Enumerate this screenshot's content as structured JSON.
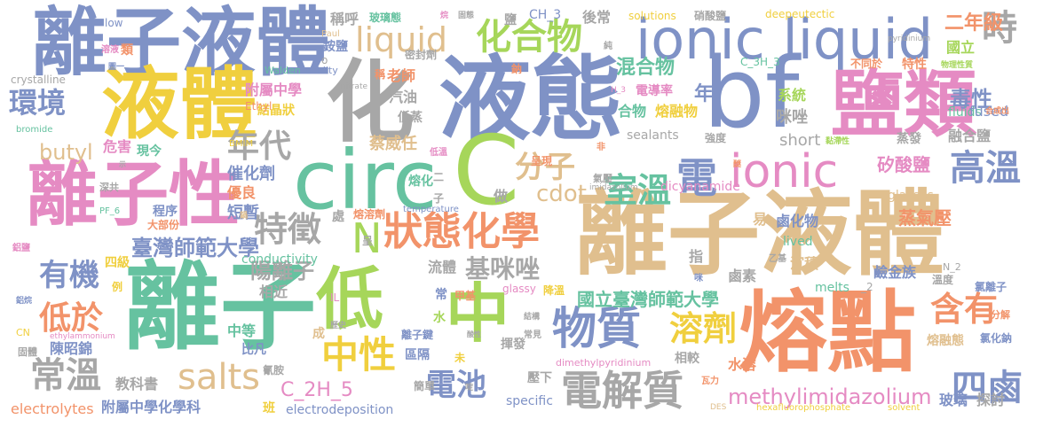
{
  "palette": {
    "blue": "#7f92c6",
    "tan": "#e0bf8e",
    "orange": "#f2936a",
    "green": "#66c2a0",
    "pink": "#e58bc3",
    "lime": "#a6d65a",
    "gray": "#a7a7a7",
    "yellow": "#f0cf3e"
  },
  "words": {
    "w1": "離子液體",
    "w2": "離子液體",
    "w3": "ionic liquid",
    "w4": "液態",
    "w5": "化",
    "w6": "bf",
    "w7": "液體",
    "w8": "鹽類",
    "w9": "circ",
    "w10": "C",
    "w11": "離子性",
    "w12": "離子",
    "w13": "低",
    "w14": "熔點",
    "w15": "中",
    "w16": "ionic",
    "w17": "化合物",
    "w18": "liquid",
    "w19": "時",
    "w20": "狀態化學",
    "w21": "物質",
    "w22": "電解質",
    "w23": "室溫",
    "w24": "電",
    "w25": "高溫",
    "w26": "分子",
    "w27": "年代",
    "w28": "特徵",
    "w29": "N",
    "w30": "中性",
    "w31": "溶劑",
    "w32": "salts",
    "w33": "電池",
    "w34": "四鹵",
    "w35": "含有",
    "w36": "常溫",
    "w37": "有機",
    "w38": "低於",
    "w39": "環境",
    "w40": "butyl",
    "w41": "methylimidazolium",
    "w42": "C_2H_5",
    "w43": "陽離子",
    "w44": "臺灣師範大學",
    "w45": "基咪唑",
    "w46": "國立臺灣師範大學",
    "w47": "cdot",
    "w48": "混合物",
    "w49": "毒性",
    "w50": "二年級",
    "w51": "年",
    "w52": "熔融物",
    "w53": "合物",
    "w54": "蒸氣壓",
    "w55": "矽酸鹽",
    "w56": "融合鹽",
    "w57": "咪唑",
    "w58": "fluids",
    "w59": "fused",
    "w60": "系統",
    "w61": "sealants",
    "w62": "short",
    "w63": "蔡威任",
    "w64": "催化劑",
    "w65": "危害",
    "w66": "現今",
    "w67": "優良",
    "w68": "短暫",
    "w69": "附屬中學",
    "w70": "老師",
    "w71": "汽油",
    "w72": "低蒸",
    "w73": "電導率",
    "w74": "結晶狀",
    "w75": "銨鹽",
    "w76": "稱呼",
    "w77": "玻璃態",
    "w78": "鹽",
    "w79": "CH_3",
    "w80": "後常",
    "w81": "solutions",
    "w82": "硝酸鹽",
    "w83": "deepeutectic",
    "w84": "C_3H_3",
    "w85": "密封劑",
    "w86": "鈉",
    "w87": "國立",
    "w88": "特性",
    "w89": "不同於",
    "w90": "pyridinium",
    "w91": "物理性質",
    "w92": "crystalline",
    "w93": "bromide",
    "w94": "low",
    "w95": "類",
    "w96": "溶液",
    "w97": "Walden",
    "w98": "acidity",
    "w99": "nitrate",
    "w100": "Paul",
    "w101": "BMIM",
    "w102": "Ethyl",
    "w103": "glasses",
    "w104": "蒸發",
    "w105": "強度",
    "w106": "dicyanamide",
    "w107": "imidazolium",
    "w108": "氣壓",
    "w109": "鹵化物",
    "w110": "易",
    "w111": "lived",
    "w112": "沉積",
    "w113": "鹵素",
    "w114": "鹼金族",
    "w115": "氯離子",
    "w116": "溫度",
    "w117": "分解",
    "w118": "氯化鈉",
    "w119": "熔融態",
    "w120": "melts",
    "w121": "_2",
    "w122": "N_2",
    "w123": "乙基",
    "w124": "指",
    "w125": "做",
    "w126": "熔化",
    "w127": "低溫",
    "w128": "temperature",
    "w129": "處",
    "w130": "熔溶劑",
    "w131": "呈現",
    "w132": "conductivity",
    "w133": "流體",
    "w134": "glassy",
    "w135": "降溫",
    "w136": "甲基",
    "w137": "常",
    "w138": "水",
    "w139": "相近",
    "w140": "IL",
    "w141": "中等",
    "w142": "成",
    "w143": "歷史",
    "w144": "離子鍵",
    "w145": "區隔",
    "w146": "未",
    "w147": "揮發",
    "w148": "dimethylpyridinium",
    "w149": "相較",
    "w150": "水溶",
    "w151": "瓦力",
    "w152": "探討",
    "w153": "玻璃",
    "w154": "solvent",
    "w155": "hexafluorophosphate",
    "w156": "DES",
    "w157": "壓下",
    "w158": "specific",
    "w159": "electrodeposition",
    "w160": "簡單",
    "w161": "班",
    "w162": "附屬中學化學科",
    "w163": "electrolytes",
    "w164": "教科書",
    "w165": "比凡",
    "w166": "氰胺",
    "w167": "陳昭錦",
    "w168": "固體",
    "w169": "CN",
    "w170": "ethylammonium",
    "w171": "四級",
    "w172": "程序",
    "w173": "大部份",
    "w174": "PF_6",
    "w175": "深共",
    "w176": "鋁鹽",
    "w177": "鋁烷",
    "w178": "例",
    "w179": "咪",
    "w180": "結構",
    "w181": "常見",
    "w182": "圖一",
    "w183": "合成出",
    "w184": "黏滯性",
    "w185": "o",
    "w186": "H_3",
    "w187": "純",
    "w188": "非",
    "w189": "固態",
    "w190": "烷",
    "w191": "稱",
    "w192": "啶",
    "w193": "鍋",
    "w194": "呈",
    "w195": "子",
    "w196": "二",
    "w197": "示",
    "w198": "醚",
    "w199": "酸性"
  }
}
